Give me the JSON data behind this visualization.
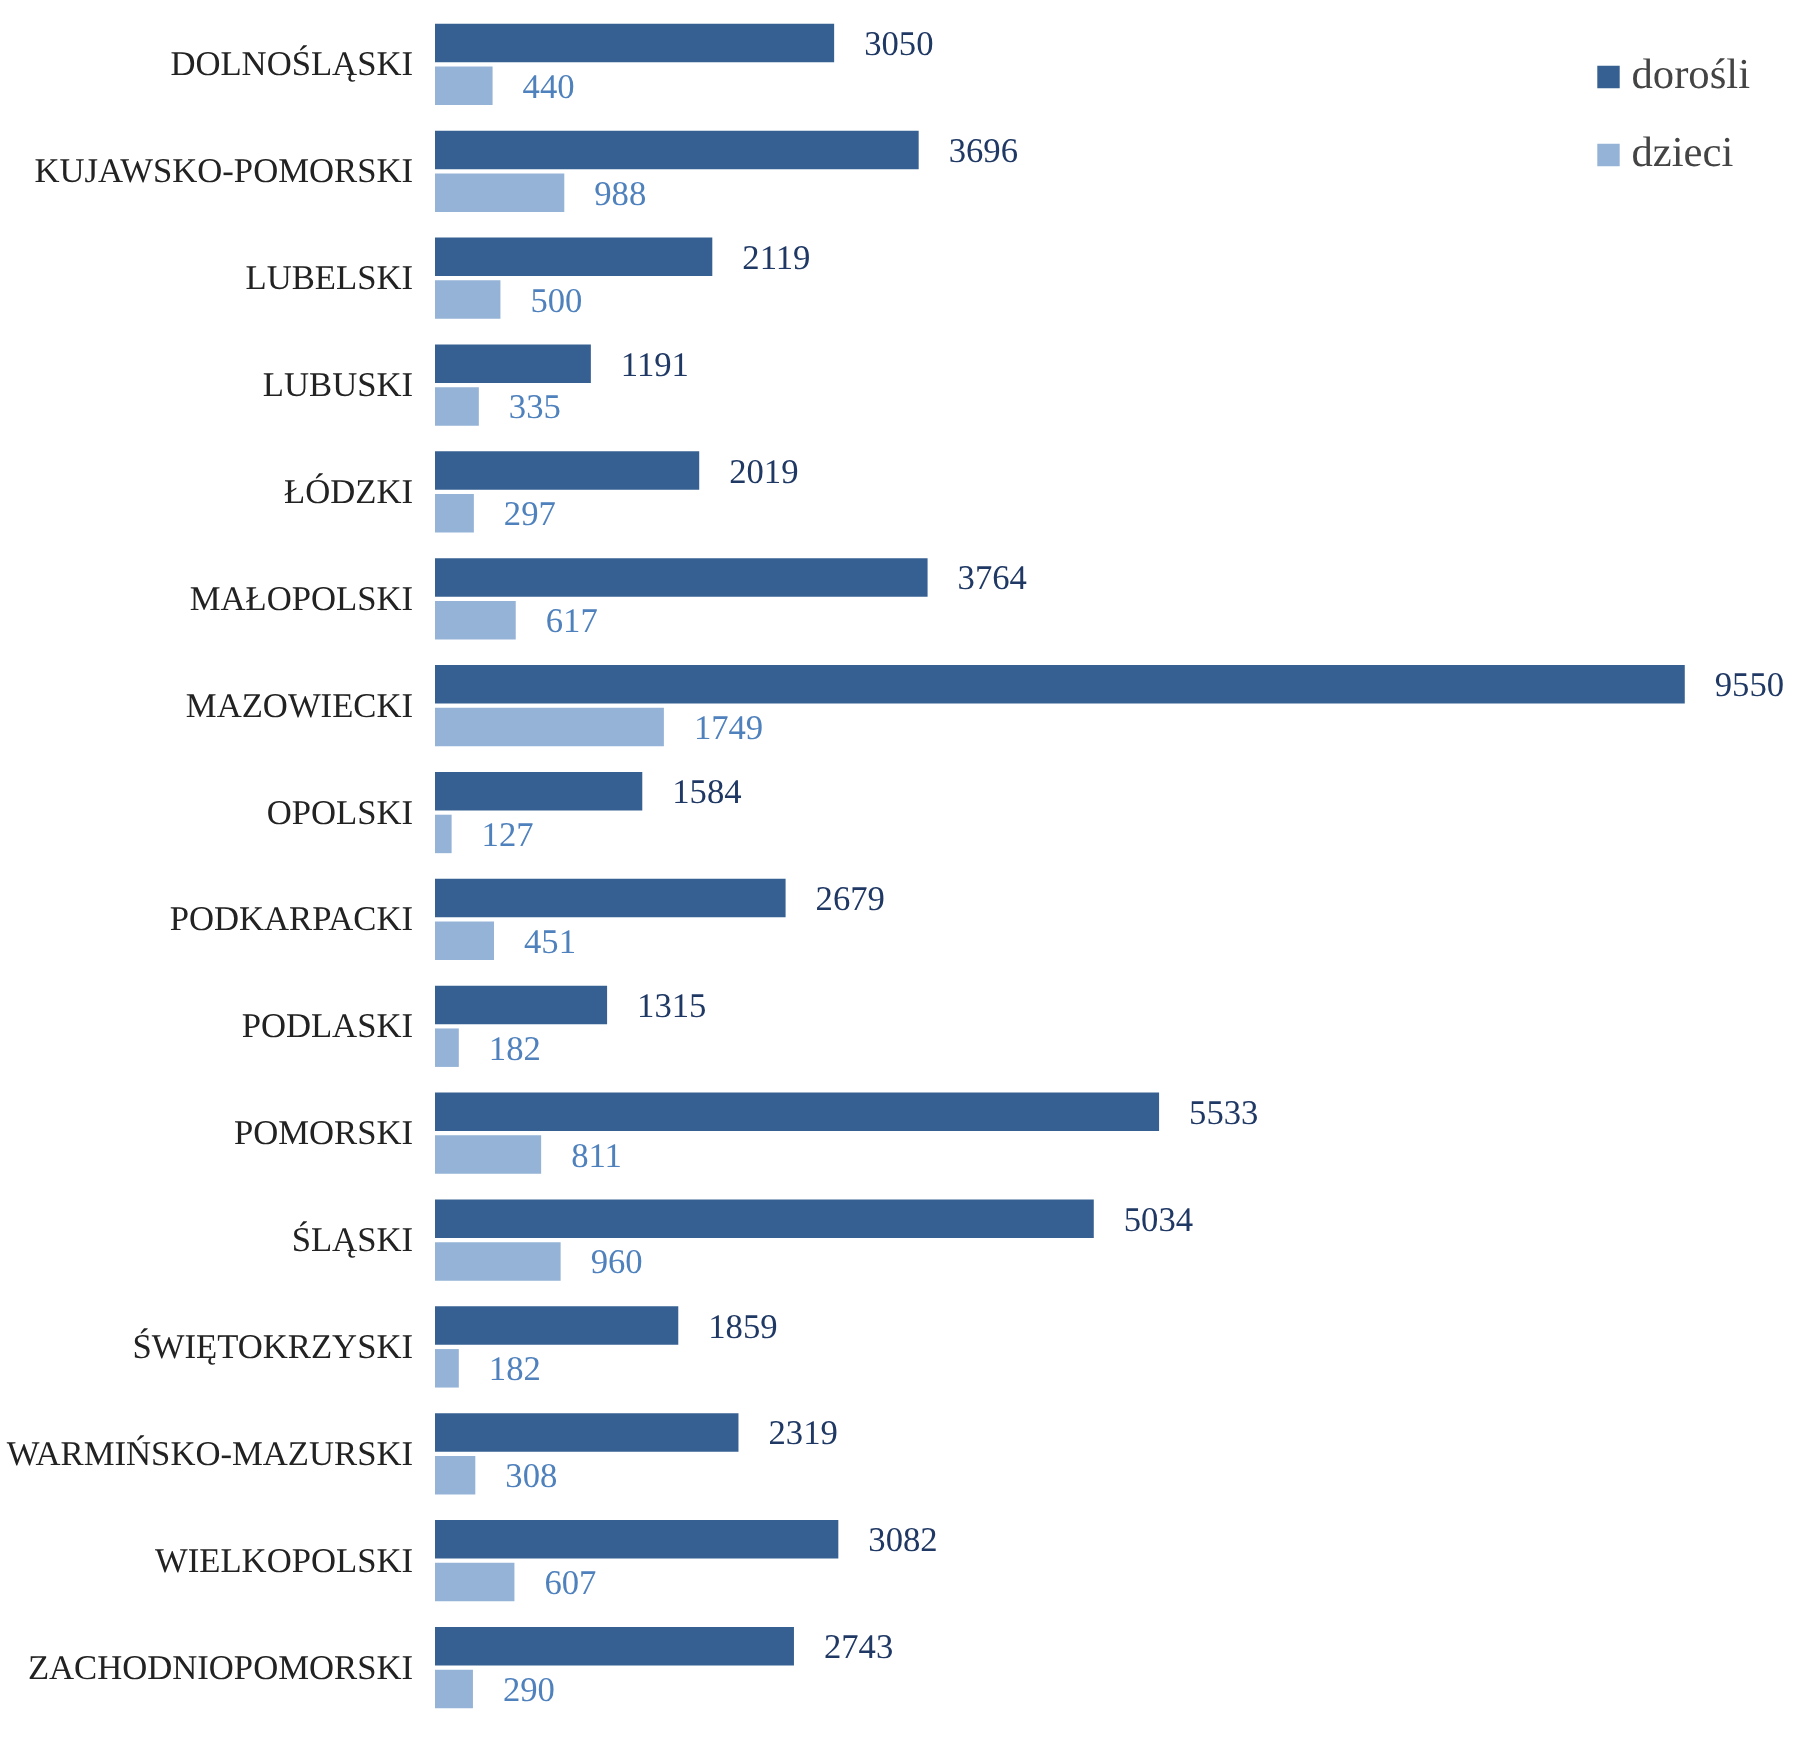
{
  "chart_data": {
    "type": "bar",
    "orientation": "horizontal",
    "categories": [
      "DOLNOŚLĄSKI",
      "KUJAWSKO-POMORSKI",
      "LUBELSKI",
      "LUBUSKI",
      "ŁÓDZKI",
      "MAŁOPOLSKI",
      "MAZOWIECKI",
      "OPOLSKI",
      "PODKARPACKI",
      "PODLASKI",
      "POMORSKI",
      "ŚLĄSKI",
      "ŚWIĘTOKRZYSKI",
      "WARMIŃSKO-MAZURSKI",
      "WIELKOPOLSKI",
      "ZACHODNIOPOMORSKI"
    ],
    "series": [
      {
        "name": "dorośli",
        "color": "#376092",
        "values": [
          3050,
          3696,
          2119,
          1191,
          2019,
          3764,
          9550,
          1584,
          2679,
          1315,
          5533,
          5034,
          1859,
          2319,
          3082,
          2743
        ]
      },
      {
        "name": "dzieci",
        "color": "#95b3d7",
        "values": [
          440,
          988,
          500,
          335,
          297,
          617,
          1749,
          127,
          451,
          182,
          811,
          960,
          182,
          308,
          607,
          290
        ]
      }
    ],
    "data_labels": true,
    "legend": "top right",
    "grid": false,
    "tick_labels": "y"
  }
}
